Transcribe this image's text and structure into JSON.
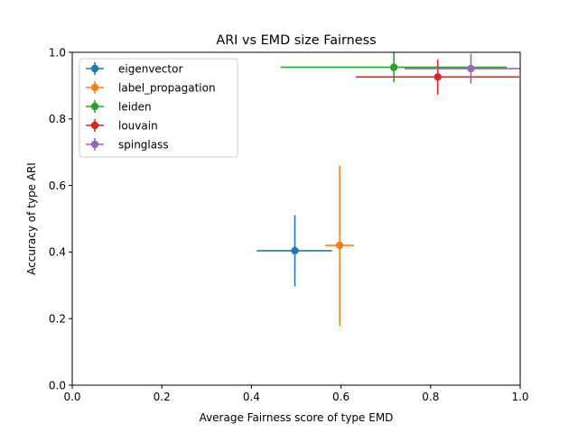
{
  "chart_data": {
    "type": "scatter",
    "title": "ARI vs EMD size Fairness",
    "xlabel": "Average Fairness score of type EMD",
    "ylabel": "Accuracy of type ARI",
    "xlim": [
      0.0,
      1.0
    ],
    "ylim": [
      0.0,
      1.0
    ],
    "xticks": [
      "0.0",
      "0.2",
      "0.4",
      "0.6",
      "0.8",
      "1.0"
    ],
    "yticks": [
      "0.0",
      "0.2",
      "0.4",
      "0.6",
      "0.8",
      "1.0"
    ],
    "grid": false,
    "legend_position": "top-left",
    "error_bars": true,
    "series": [
      {
        "name": "eigenvector",
        "color": "#1f77b4",
        "x": 0.497,
        "y": 0.404,
        "x_err": [
          0.085,
          0.083
        ],
        "y_err": [
          0.107,
          0.107
        ]
      },
      {
        "name": "label_propagation",
        "color": "#ff7f0e",
        "x": 0.597,
        "y": 0.42,
        "x_err": [
          0.032,
          0.032
        ],
        "y_err": [
          0.242,
          0.24
        ]
      },
      {
        "name": "leiden",
        "color": "#2ca02c",
        "x": 0.718,
        "y": 0.955,
        "x_err": [
          0.253,
          0.252
        ],
        "y_err": [
          0.045,
          0.045
        ]
      },
      {
        "name": "louvain",
        "color": "#d62728",
        "x": 0.816,
        "y": 0.926,
        "x_err": [
          0.183,
          0.182
        ],
        "y_err": [
          0.053,
          0.052
        ]
      },
      {
        "name": "spinglass",
        "color": "#9467bd",
        "x": 0.89,
        "y": 0.951,
        "x_err": [
          0.148,
          0.147
        ],
        "y_err": [
          0.045,
          0.045
        ]
      }
    ]
  }
}
